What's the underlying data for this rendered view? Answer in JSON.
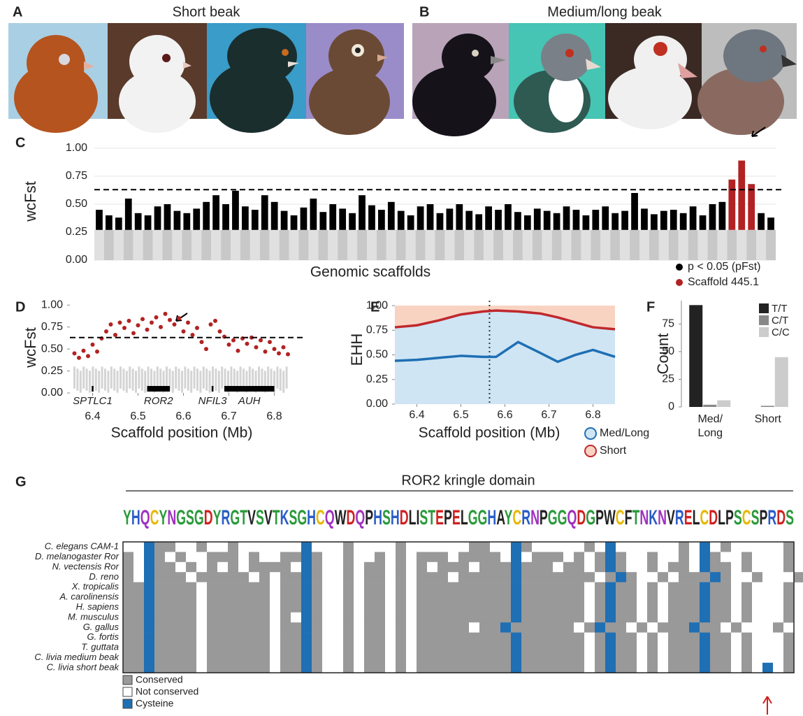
{
  "panels": {
    "A": {
      "label": "A",
      "title": "Short beak"
    },
    "B": {
      "label": "B",
      "title": "Medium/long beak"
    }
  },
  "chart_data": [
    {
      "type": "manhattan",
      "label": "C",
      "y_label": "wcFst",
      "x_label": "Genomic scaffolds",
      "ylim": [
        0,
        1.05
      ],
      "yticks": [
        {
          "value": 0,
          "label": "0.00"
        },
        {
          "value": 0.25,
          "label": "0.25"
        },
        {
          "value": 0.5,
          "label": "0.50"
        },
        {
          "value": 0.75,
          "label": "0.75"
        },
        {
          "value": 1,
          "label": "1.00"
        }
      ],
      "grid": true,
      "threshold": 0.63,
      "series": [
        {
          "name": "p < 0.05 (pFst)",
          "color": "#000000",
          "values": [
            0.45,
            0.4,
            0.38,
            0.55,
            0.42,
            0.4,
            0.48,
            0.5,
            0.44,
            0.42,
            0.46,
            0.52,
            0.58,
            0.5,
            0.62,
            0.48,
            0.45,
            0.58,
            0.52,
            0.44,
            0.4,
            0.47,
            0.55,
            0.43,
            0.5,
            0.46,
            0.42,
            0.58,
            0.49,
            0.45,
            0.52,
            0.44,
            0.4,
            0.48,
            0.5,
            0.42,
            0.46,
            0.5,
            0.44,
            0.41,
            0.48,
            0.45,
            0.5,
            0.43,
            0.4,
            0.46,
            0.44,
            0.42,
            0.48,
            0.45,
            0.4,
            0.45,
            0.48,
            0.42,
            0.44,
            0.6,
            0.46,
            0.41,
            0.44,
            0.45,
            0.42,
            0.48,
            0.4,
            0.5,
            0.52,
            null,
            null,
            null,
            0.42,
            0.38
          ]
        },
        {
          "name": "Scaffold 445.1",
          "color": "#b22222",
          "values": [
            null,
            null,
            null,
            null,
            null,
            null,
            null,
            null,
            null,
            null,
            null,
            null,
            null,
            null,
            null,
            null,
            null,
            null,
            null,
            null,
            null,
            null,
            null,
            null,
            null,
            null,
            null,
            null,
            null,
            null,
            null,
            null,
            null,
            null,
            null,
            null,
            null,
            null,
            null,
            null,
            null,
            null,
            null,
            null,
            null,
            null,
            null,
            null,
            null,
            null,
            null,
            null,
            null,
            null,
            null,
            null,
            null,
            null,
            null,
            null,
            null,
            null,
            null,
            null,
            null,
            0.72,
            0.89,
            0.68,
            null,
            null
          ]
        }
      ]
    },
    {
      "type": "scatter",
      "label": "D",
      "y_label": "wcFst",
      "x_label": "Scaffold position (Mb)",
      "color": "#b22222",
      "xlim": [
        6.35,
        6.85
      ],
      "xticks": [
        6.4,
        6.5,
        6.6,
        6.7,
        6.8
      ],
      "ylim": [
        0,
        1.05
      ],
      "yticks": [
        {
          "value": 0,
          "label": "0.00"
        },
        {
          "value": 0.25,
          "label": "0.25"
        },
        {
          "value": 0.5,
          "label": "0.50"
        },
        {
          "value": 0.75,
          "label": "0.75"
        },
        {
          "value": 1,
          "label": "1.00"
        }
      ],
      "threshold": 0.63,
      "x": [
        6.36,
        6.37,
        6.38,
        6.39,
        6.4,
        6.41,
        6.42,
        6.43,
        6.44,
        6.45,
        6.46,
        6.47,
        6.48,
        6.49,
        6.5,
        6.51,
        6.52,
        6.53,
        6.54,
        6.55,
        6.56,
        6.57,
        6.58,
        6.59,
        6.6,
        6.61,
        6.62,
        6.63,
        6.64,
        6.65,
        6.66,
        6.67,
        6.68,
        6.69,
        6.7,
        6.71,
        6.72,
        6.73,
        6.74,
        6.75,
        6.76,
        6.77,
        6.78,
        6.79,
        6.8,
        6.81,
        6.82,
        6.83
      ],
      "values": [
        0.45,
        0.4,
        0.48,
        0.42,
        0.55,
        0.47,
        0.62,
        0.7,
        0.78,
        0.66,
        0.8,
        0.74,
        0.82,
        0.68,
        0.77,
        0.84,
        0.72,
        0.8,
        0.86,
        0.75,
        0.9,
        0.83,
        0.78,
        0.85,
        0.7,
        0.8,
        0.66,
        0.74,
        0.58,
        0.5,
        0.78,
        0.82,
        0.7,
        0.64,
        0.55,
        0.6,
        0.48,
        0.62,
        0.56,
        0.63,
        0.52,
        0.6,
        0.47,
        0.58,
        0.5,
        0.45,
        0.52,
        0.44
      ],
      "genes": [
        {
          "name": "SPTLC1",
          "start": 6.398,
          "end": 6.402
        },
        {
          "name": "ROR2",
          "start": 6.52,
          "end": 6.57
        },
        {
          "name": "NFIL3",
          "start": 6.662,
          "end": 6.666
        },
        {
          "name": "AUH",
          "start": 6.69,
          "end": 6.8
        }
      ]
    },
    {
      "type": "line",
      "label": "E",
      "y_label": "EHH",
      "x_label": "Scaffold position (Mb)",
      "xlim": [
        6.35,
        6.85
      ],
      "xticks": [
        6.4,
        6.5,
        6.6,
        6.7,
        6.8
      ],
      "ylim": [
        0,
        1.05
      ],
      "yticks": [
        {
          "value": 0,
          "label": "0.00"
        },
        {
          "value": 0.25,
          "label": "0.25"
        },
        {
          "value": 0.5,
          "label": "0.50"
        },
        {
          "value": 0.75,
          "label": "0.75"
        },
        {
          "value": 1,
          "label": "1.00"
        }
      ],
      "marker": 6.565,
      "x": [
        6.35,
        6.4,
        6.45,
        6.5,
        6.55,
        6.58,
        6.63,
        6.68,
        6.72,
        6.76,
        6.8,
        6.85
      ],
      "series": [
        {
          "name": "Med/Long",
          "color": "#1f6fb4",
          "band_color": "#cfe5f4",
          "values": [
            0.44,
            0.45,
            0.47,
            0.49,
            0.48,
            0.48,
            0.63,
            0.52,
            0.43,
            0.5,
            0.55,
            0.48
          ]
        },
        {
          "name": "Short",
          "color": "#c0282d",
          "band_color": "#f8d3c2",
          "values": [
            0.78,
            0.8,
            0.85,
            0.91,
            0.94,
            0.95,
            0.94,
            0.92,
            0.88,
            0.83,
            0.78,
            0.76
          ]
        }
      ]
    },
    {
      "type": "bar",
      "label": "F",
      "y_label": "Count",
      "categories": [
        "Med/\nLong",
        "Short"
      ],
      "ylim": [
        0,
        96
      ],
      "yticks": [
        0,
        25,
        50,
        75
      ],
      "legend": "top-right",
      "series": [
        {
          "name": "T/T",
          "color": "#222222",
          "values": [
            92,
            0
          ]
        },
        {
          "name": "C/T",
          "color": "#888888",
          "values": [
            2,
            1
          ]
        },
        {
          "name": "C/C",
          "color": "#cccccc",
          "values": [
            6,
            45
          ]
        }
      ]
    }
  ],
  "alignment": {
    "label": "G",
    "title": "ROR2 kringle domain",
    "logo": "YHQCYNGSGDYRGTVSVTKSGHCQWDQPHSHDLISTEPELGGHAYCRNPGGQDGPWCFTNKNVRELCDLPSCSPRDS",
    "rows": [
      {
        "name": "C. elegans CAM-1",
        "color": "#222222",
        "cells": "..C##..#..#......C...#....#......##..C#.....#.C......#.C.#.....#"
      },
      {
        "name": "D. melanogaster Ror",
        "color": "#222222",
        "cells": "#.C#.#..###.#..##C#..#..#.#.###.####.C.###.#.#C#..#..#.C#..#...#"
      },
      {
        "name": "N. vectensis Ror",
        "color": "#222222",
        "cells": "#.C##.#.#.#.####.C#..#.##.#.#.###.###C###.##.#C#..#.##.C##.#...#"
      },
      {
        "name": "D. reno",
        "color": "#222222",
        "cells": "#.C###.#####.#.##C#..#.##.#.###.#####C#######.#C#..#.###C#..#...#"
      },
      {
        "name": "X. tropicalis",
        "color": "#222222",
        "cells": "##C####.######.##C#..#.##.#.#########C######.#C##.#.###C##.#...#"
      },
      {
        "name": "A. carolinensis",
        "color": "#222222",
        "cells": "##C####.######.##C#..#.##.#.#########C######.#C##.#.###C##.#...#"
      },
      {
        "name": "H. sapiens",
        "color": "#222222",
        "cells": "##C####.######.##C#..#.##.#.#########C######.#C##.#.###C##.#...#"
      },
      {
        "name": "M. musculus",
        "color": "#222222",
        "cells": "##C####.######.#.C#..#.##.#.#########C######.#C##.#.###C##.#...#"
      },
      {
        "name": "G. gallus",
        "color": "#222222",
        "cells": "##C####.######.##C#..#.##.#.#####.##C######.#C##.#.###C##.#...#"
      },
      {
        "name": "G. fortis",
        "color": "#222222",
        "cells": "##C####.######.##C#..#.##.#.#########C######.#C##.#.###C##.#...#"
      },
      {
        "name": "T. guttata",
        "color": "#222222",
        "cells": "##C####.######.##C#..#.##.#.#########C######.#C##.#.###C##.#...#"
      },
      {
        "name": "C. livia medium beak",
        "color": "#c0282d",
        "cells": "##C####.######.##C#..#.##.#.#########C######.#C##.#.###C##.#...#"
      },
      {
        "name": "C. livia short beak",
        "color": "#c0282d",
        "cells": "##C####.######.##C#..#.##.#.#########C######.#C##.#.###C##.#.C.#"
      }
    ],
    "legend": [
      {
        "name": "Conserved",
        "code": "#",
        "color": "#999999"
      },
      {
        "name": "Not conserved",
        "code": ".",
        "color": "#ffffff"
      },
      {
        "name": "Cysteine",
        "code": "C",
        "color": "#1f6fb4"
      }
    ]
  }
}
